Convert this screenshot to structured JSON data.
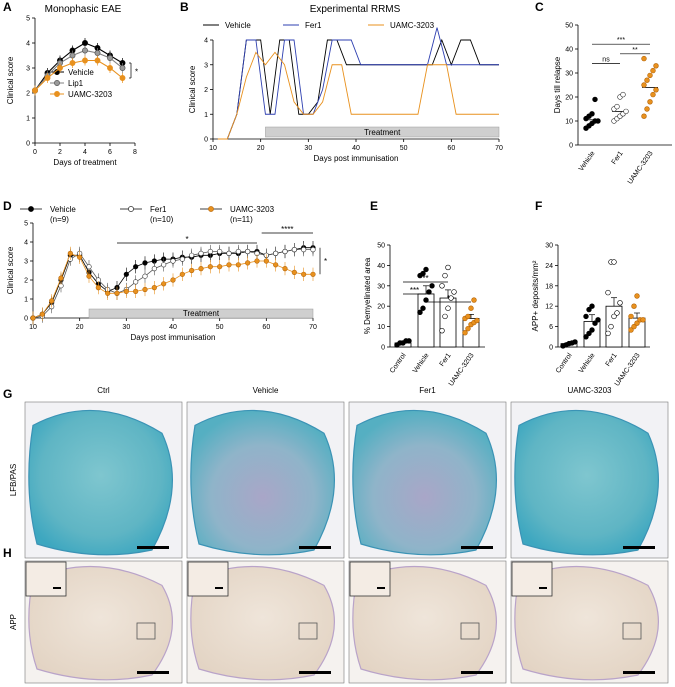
{
  "colors": {
    "vehicle": "#000000",
    "fer1": "#2E3FB0",
    "uamc": "#E8911E",
    "lip1": "#808080",
    "treatment_bar": "#cfcfcf"
  },
  "chart_data": [
    {
      "panel": "A",
      "type": "line",
      "title": "Monophasic EAE",
      "xlabel": "Days of treatment",
      "ylabel": "Clinical score",
      "xlim": [
        0,
        8
      ],
      "ylim": [
        0,
        5
      ],
      "xticks": [
        "0",
        "2",
        "4",
        "6",
        "8"
      ],
      "yticks": [
        "0",
        "1",
        "2",
        "3",
        "4",
        "5"
      ],
      "significance": "*",
      "x": [
        0,
        1,
        2,
        3,
        4,
        5,
        6,
        7
      ],
      "series": [
        {
          "name": "Vehicle",
          "values": [
            2.1,
            2.8,
            3.3,
            3.7,
            4.0,
            3.8,
            3.5,
            3.2
          ]
        },
        {
          "name": "Lip1",
          "values": [
            2.1,
            2.7,
            3.2,
            3.5,
            3.7,
            3.6,
            3.4,
            3.0
          ]
        },
        {
          "name": "UAMC-3203",
          "values": [
            2.1,
            2.6,
            3.0,
            3.2,
            3.3,
            3.3,
            3.0,
            2.6
          ]
        }
      ]
    },
    {
      "panel": "B",
      "type": "line",
      "title": "Experimental RRMS",
      "xlabel": "Days post immunisation",
      "ylabel": "Clinical score",
      "xlim": [
        10,
        70
      ],
      "ylim": [
        0,
        4
      ],
      "xticks": [
        "10",
        "20",
        "30",
        "40",
        "50",
        "60",
        "70"
      ],
      "yticks": [
        "0",
        "1",
        "2",
        "3",
        "4"
      ],
      "treatment_label": "Treatment",
      "treatment_range": [
        21,
        70
      ],
      "series": [
        {
          "name": "Vehicle",
          "x": [
            11,
            13,
            15,
            17,
            20,
            22,
            24,
            26,
            28,
            30,
            32,
            34,
            36,
            38,
            40,
            56,
            58,
            60,
            62,
            64,
            66,
            68,
            70
          ],
          "values": [
            0,
            0,
            1,
            4,
            4,
            1,
            4,
            4,
            1,
            1,
            1.5,
            4,
            4,
            3,
            3,
            3,
            4,
            3,
            4,
            4,
            3,
            3,
            3
          ]
        },
        {
          "name": "Fer1",
          "x": [
            11,
            13,
            15,
            17,
            19,
            21,
            23,
            25,
            27,
            29,
            31,
            33,
            35,
            37,
            39,
            41,
            43,
            55,
            57,
            59,
            61,
            63,
            70
          ],
          "values": [
            0,
            0,
            1,
            4,
            4,
            1,
            1,
            4,
            4,
            1,
            1,
            2,
            4,
            4,
            4,
            3,
            3,
            3,
            4.5,
            3,
            3,
            3,
            3
          ]
        },
        {
          "name": "UAMC-3203",
          "x": [
            11,
            13,
            15,
            17,
            19,
            21,
            23,
            25,
            27,
            29,
            31,
            33,
            35,
            37,
            39,
            41,
            45,
            47,
            49,
            51,
            53,
            55,
            57,
            59,
            61,
            63,
            70
          ],
          "values": [
            0,
            0,
            1,
            2.5,
            3.5,
            3,
            3.5,
            3,
            1.5,
            1,
            1,
            1.5,
            3,
            3,
            1,
            1,
            1,
            1,
            1,
            1,
            1,
            3,
            3,
            3,
            1,
            1,
            1
          ]
        }
      ]
    },
    {
      "panel": "C",
      "type": "scatter",
      "ylabel": "Days till relapse",
      "ylim": [
        0,
        50
      ],
      "yticks": [
        "0",
        "10",
        "20",
        "30",
        "40",
        "50"
      ],
      "categories": [
        "Vehicle",
        "Fer1",
        "UAMC-3203"
      ],
      "means": [
        10.5,
        14,
        24
      ],
      "significance": [
        {
          "pair": "Vehicle-Fer1",
          "label": "ns"
        },
        {
          "pair": "Vehicle-UAMC-3203",
          "label": "***"
        },
        {
          "pair": "Fer1-UAMC-3203",
          "label": "**"
        }
      ],
      "points": [
        [
          7,
          8,
          9,
          10,
          10,
          11,
          12,
          13,
          19
        ],
        [
          10,
          11,
          12,
          13,
          14,
          15,
          16,
          20,
          21
        ],
        [
          12,
          15,
          18,
          21,
          23,
          25,
          27,
          29,
          31,
          33,
          36
        ]
      ]
    },
    {
      "panel": "D",
      "type": "line",
      "xlabel": "Days post immunisation",
      "ylabel": "Clinical score",
      "xlim": [
        10,
        70
      ],
      "ylim": [
        0,
        5
      ],
      "xticks": [
        "10",
        "20",
        "30",
        "40",
        "50",
        "60",
        "70"
      ],
      "yticks": [
        "0",
        "1",
        "2",
        "3",
        "4",
        "5"
      ],
      "treatment_label": "Treatment",
      "treatment_range": [
        22,
        70
      ],
      "significance": [
        {
          "label": "*",
          "range": [
            28,
            58
          ]
        },
        {
          "label": "****",
          "range": [
            59,
            70
          ]
        },
        {
          "label": "*",
          "side": "right"
        }
      ],
      "x": [
        10,
        12,
        14,
        16,
        18,
        20,
        22,
        24,
        26,
        28,
        30,
        32,
        34,
        36,
        38,
        40,
        42,
        44,
        46,
        48,
        50,
        52,
        54,
        56,
        58,
        60,
        62,
        64,
        66,
        68,
        70
      ],
      "series": [
        {
          "name": "Vehicle",
          "n": "(n=9)",
          "values": [
            0,
            0.2,
            0.8,
            2.0,
            3.3,
            3.3,
            2.4,
            1.8,
            1.4,
            1.6,
            2.3,
            2.7,
            2.9,
            3.0,
            3.1,
            3.1,
            3.2,
            3.2,
            3.3,
            3.3,
            3.4,
            3.4,
            3.4,
            3.5,
            3.5,
            3.3,
            3.4,
            3.5,
            3.6,
            3.7,
            3.7
          ]
        },
        {
          "name": "Fer1",
          "n": "(n=10)",
          "values": [
            0,
            0.1,
            0.6,
            1.7,
            3.1,
            3.4,
            2.7,
            2.0,
            1.5,
            1.3,
            1.5,
            1.9,
            2.2,
            2.6,
            2.8,
            3.0,
            3.1,
            3.3,
            3.4,
            3.5,
            3.5,
            3.4,
            3.5,
            3.5,
            3.4,
            3.3,
            3.4,
            3.5,
            3.6,
            3.6,
            3.6
          ]
        },
        {
          "name": "UAMC-3203",
          "n": "(n=11)",
          "values": [
            0,
            0.2,
            0.9,
            2.1,
            3.4,
            3.2,
            2.2,
            1.6,
            1.3,
            1.3,
            1.4,
            1.4,
            1.5,
            1.6,
            1.8,
            2.0,
            2.3,
            2.5,
            2.6,
            2.7,
            2.7,
            2.8,
            2.8,
            2.9,
            3.0,
            3.0,
            2.8,
            2.6,
            2.4,
            2.3,
            2.3
          ]
        }
      ]
    },
    {
      "panel": "E",
      "type": "bar",
      "ylabel": "% Demyelinated area",
      "ylim": [
        0,
        50
      ],
      "yticks": [
        "0",
        "10",
        "20",
        "30",
        "40",
        "50"
      ],
      "categories": [
        "Control",
        "Vehicle",
        "Fer1",
        "UAMC-3203"
      ],
      "values": [
        2,
        26,
        24,
        14
      ],
      "errors": [
        1,
        4,
        4,
        2
      ],
      "significance": [
        {
          "pair": "Control-Vehicle",
          "label": "***"
        },
        {
          "pair": "Control-Fer1",
          "label": "**"
        },
        {
          "pair": "Vehicle-UAMC-3203",
          "label": "*"
        }
      ],
      "points": [
        [
          1,
          2,
          2,
          3,
          3
        ],
        [
          17,
          19,
          23,
          27,
          30,
          35,
          36,
          38
        ],
        [
          8,
          15,
          19,
          24,
          27,
          30,
          35,
          39
        ],
        [
          7,
          9,
          11,
          12,
          13,
          14,
          15,
          19,
          23
        ]
      ]
    },
    {
      "panel": "F",
      "type": "bar",
      "ylabel": "APP+ deposits/mm²",
      "ylim": [
        0,
        30
      ],
      "yticks": [
        "0",
        "6",
        "12",
        "18",
        "24",
        "30"
      ],
      "categories": [
        "Control",
        "Vehicle",
        "Fer1",
        "UAMC-3203"
      ],
      "values": [
        1,
        7.5,
        12,
        8.5
      ],
      "errors": [
        0.3,
        2,
        2.5,
        1.5
      ],
      "points": [
        [
          0.3,
          0.6,
          1,
          1.2,
          1.5
        ],
        [
          3,
          4,
          5,
          7,
          8,
          9,
          11,
          12
        ],
        [
          4,
          6,
          9,
          10,
          13,
          16,
          25,
          25
        ],
        [
          5,
          6,
          7,
          8,
          8,
          9,
          12,
          15
        ]
      ]
    }
  ],
  "micro": {
    "columns": [
      "Ctrl",
      "Vehicle",
      "Fer1",
      "UAMC-3203"
    ],
    "rows": [
      {
        "letter": "G",
        "label": "LFB/PAS"
      },
      {
        "letter": "H",
        "label": "APP"
      }
    ]
  }
}
